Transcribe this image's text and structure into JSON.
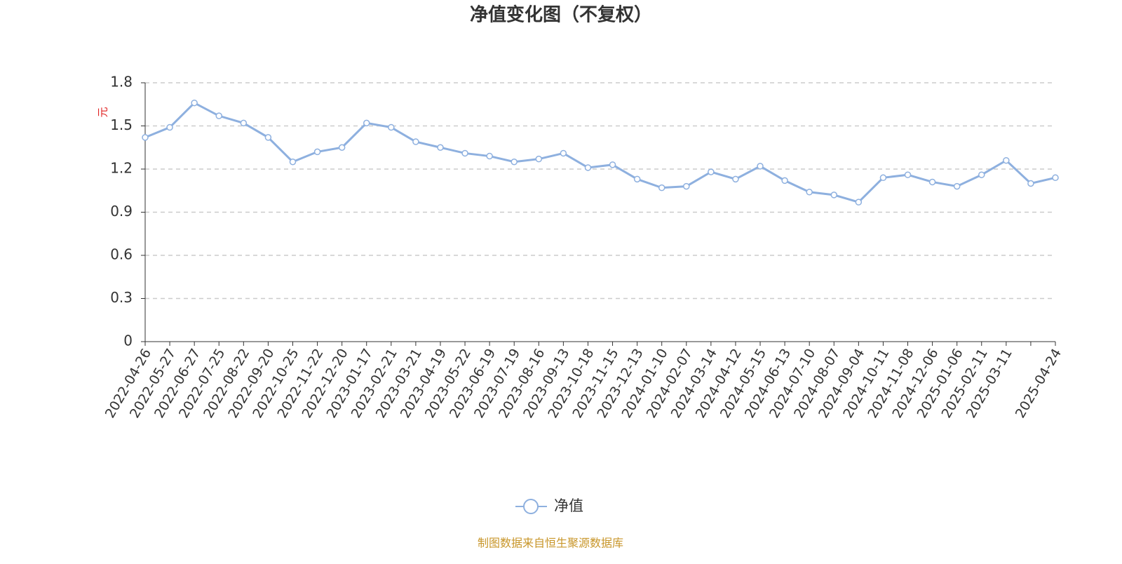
{
  "chart_data": {
    "type": "line",
    "title": "净值变化图（不复权）",
    "y_label": "元",
    "footer": "制图数据来自恒生聚源数据库",
    "categories": [
      "2022-04-26",
      "2022-05-27",
      "2022-06-27",
      "2022-07-25",
      "2022-08-22",
      "2022-09-20",
      "2022-10-25",
      "2022-11-22",
      "2022-12-20",
      "2023-01-17",
      "2023-02-21",
      "2023-03-21",
      "2023-04-19",
      "2023-05-22",
      "2023-06-19",
      "2023-07-19",
      "2023-08-16",
      "2023-09-13",
      "2023-10-18",
      "2023-11-15",
      "2023-12-13",
      "2024-01-10",
      "2024-02-07",
      "2024-03-14",
      "2024-04-12",
      "2024-05-15",
      "2024-06-13",
      "2024-07-10",
      "2024-08-07",
      "2024-09-04",
      "2024-10-11",
      "2024-11-08",
      "2024-12-06",
      "2025-01-06",
      "2025-02-11",
      "2025-03-11",
      null,
      "2025-04-24"
    ],
    "series": [
      {
        "name": "净值",
        "color": "#8eb0df",
        "values": [
          1.42,
          1.49,
          1.66,
          1.57,
          1.52,
          1.42,
          1.25,
          1.32,
          1.35,
          1.52,
          1.49,
          1.39,
          1.35,
          1.31,
          1.29,
          1.25,
          1.27,
          1.31,
          1.21,
          1.23,
          1.13,
          1.07,
          1.08,
          1.18,
          1.13,
          1.22,
          1.12,
          1.04,
          1.02,
          0.97,
          1.14,
          1.16,
          1.11,
          1.08,
          1.16,
          1.26,
          1.1,
          1.14
        ]
      }
    ],
    "ylim": [
      0,
      1.8
    ],
    "yticks": [
      0,
      0.3,
      0.6,
      0.9,
      1.2,
      1.5,
      1.8
    ],
    "grid": true,
    "legend": "bottom"
  }
}
